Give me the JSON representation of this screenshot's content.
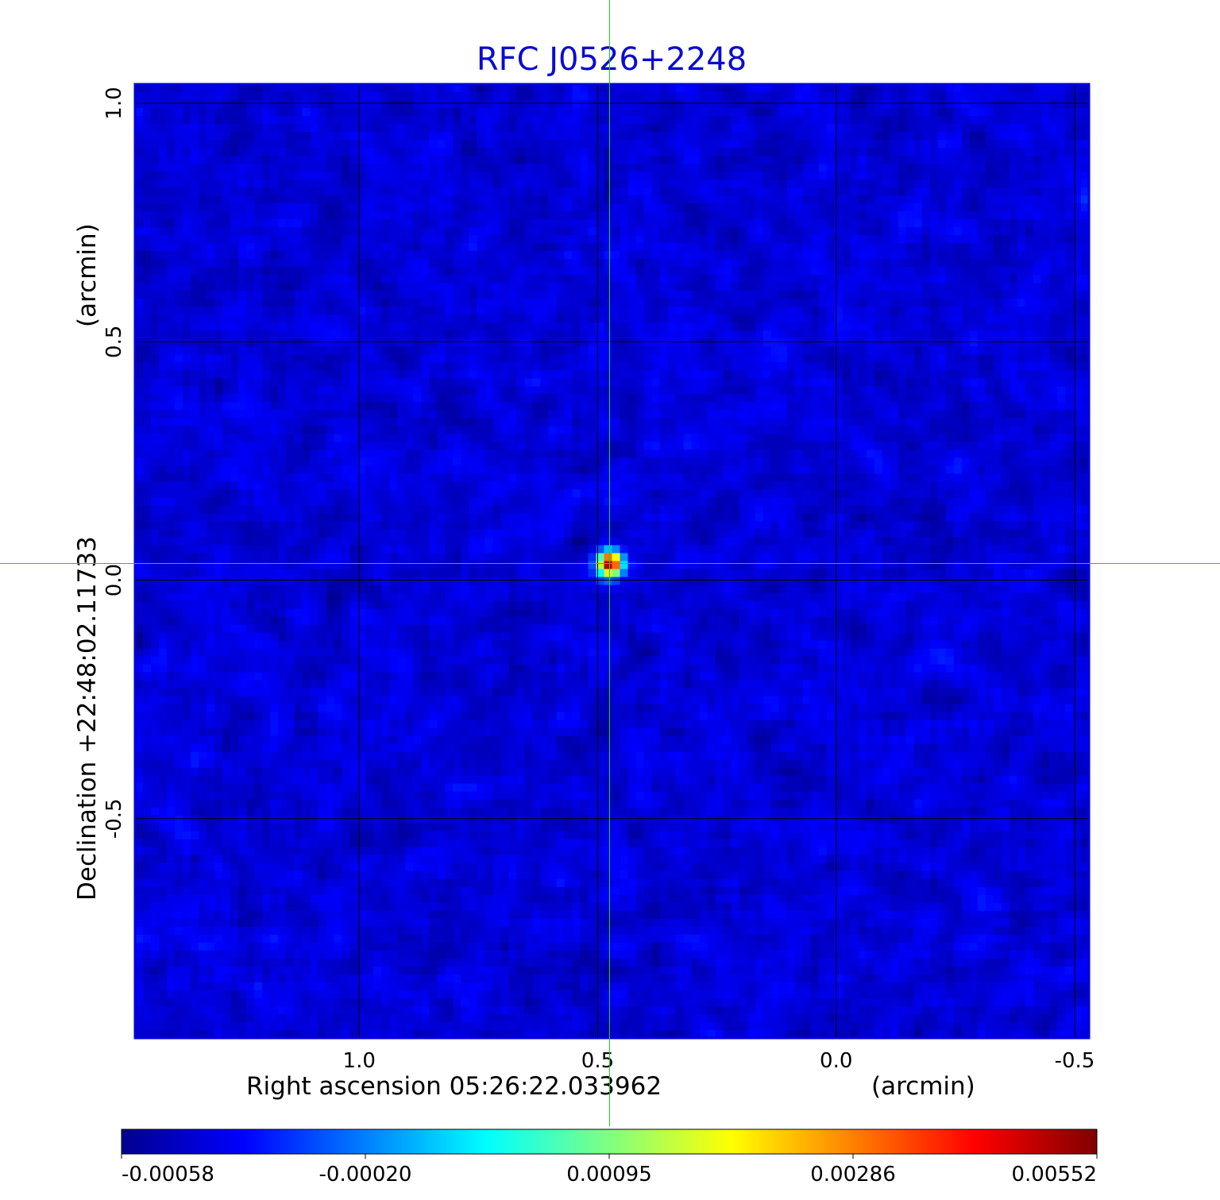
{
  "chart_data": {
    "type": "heatmap",
    "title": "RFC J0526+2248",
    "xlabel": "Right ascension  05:26:22.033962",
    "xunit": "(arcmin)",
    "ylabel": "Declination  +22:48:02.11733",
    "yunit": "(arcmin)",
    "x_ticks": [
      "1.0",
      "0.5",
      "0.0",
      "-0.5"
    ],
    "x_tick_values": [
      1.0,
      0.5,
      0.0,
      -0.5
    ],
    "y_ticks": [
      "1.0",
      "0.5",
      "0.0",
      "-0.5"
    ],
    "y_tick_values": [
      1.0,
      0.5,
      0.0,
      -0.5
    ],
    "xlim": [
      1.47,
      -0.53
    ],
    "ylim": [
      -0.96,
      1.04
    ],
    "grid": true,
    "crosshair": {
      "x": 0.475,
      "y": 0.035
    },
    "colorbar": {
      "ticks": [
        "-0.00058",
        "-0.00020",
        "0.00095",
        "0.00286",
        "0.00552"
      ],
      "range": [
        -0.00058,
        0.00552
      ],
      "colormap": "jet"
    },
    "source": {
      "x": 0.475,
      "y": 0.035,
      "peak": 0.00552
    },
    "background_level": -5e-05,
    "noise_rms": 0.00012
  },
  "colors": {
    "frame": "#0000dd",
    "title": "#0b0bd0",
    "grid": "#000000",
    "crosshair": "#22cc22"
  }
}
